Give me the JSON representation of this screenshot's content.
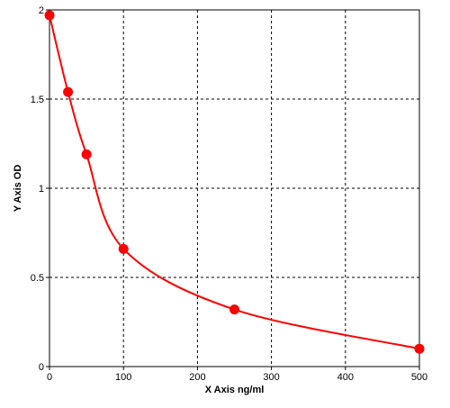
{
  "chart_data": {
    "type": "scatter",
    "title": "",
    "xlabel": "X Axis ng/ml",
    "ylabel": "Y Axis OD",
    "xlim": [
      0,
      500
    ],
    "ylim": [
      0,
      2
    ],
    "x_ticks": [
      0,
      100,
      200,
      300,
      400,
      500
    ],
    "x_tick_labels": [
      "0",
      "100",
      "200",
      "300",
      "400",
      "500"
    ],
    "y_ticks": [
      0,
      0.5,
      1,
      1.5,
      2
    ],
    "y_tick_labels": [
      "0",
      "0.5",
      "1",
      "1.5",
      "2"
    ],
    "grid": true,
    "legend": "none",
    "series": [
      {
        "points": [
          {
            "x": 0,
            "y": 1.97
          },
          {
            "x": 25,
            "y": 1.54
          },
          {
            "x": 50,
            "y": 1.19
          },
          {
            "x": 100,
            "y": 0.66
          },
          {
            "x": 250,
            "y": 0.32
          },
          {
            "x": 500,
            "y": 0.1
          }
        ],
        "color": "#ff0000",
        "fit": "curve"
      }
    ]
  }
}
